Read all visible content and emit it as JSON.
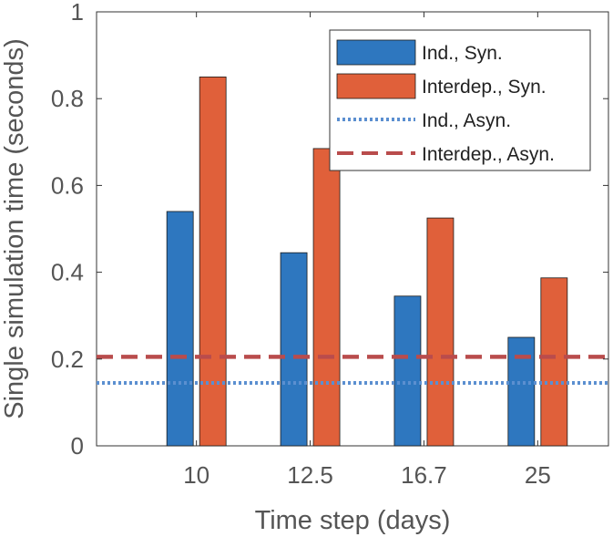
{
  "chart_data": {
    "type": "bar",
    "categories": [
      "10",
      "12.5",
      "16.7",
      "25"
    ],
    "series": [
      {
        "name": "Ind., Syn.",
        "values": [
          0.54,
          0.445,
          0.345,
          0.25
        ],
        "color": "#2e77bf"
      },
      {
        "name": "Interdep., Syn.",
        "values": [
          0.85,
          0.685,
          0.525,
          0.387
        ],
        "color": "#e0603a"
      }
    ],
    "reference_lines": [
      {
        "name": "Ind., Asyn.",
        "value": 0.145,
        "color": "#5b8fd0",
        "style": "dotted"
      },
      {
        "name": "Interdep., Asyn.",
        "value": 0.205,
        "color": "#b94c4c",
        "style": "dashed"
      }
    ],
    "xlabel": "Time step (days)",
    "ylabel": "Single simulation time (seconds)",
    "ylim": [
      0,
      1
    ],
    "yticks": [
      "0",
      "0.2",
      "0.4",
      "0.6",
      "0.8",
      "1"
    ],
    "grid": false,
    "legend_position": "top-right"
  }
}
